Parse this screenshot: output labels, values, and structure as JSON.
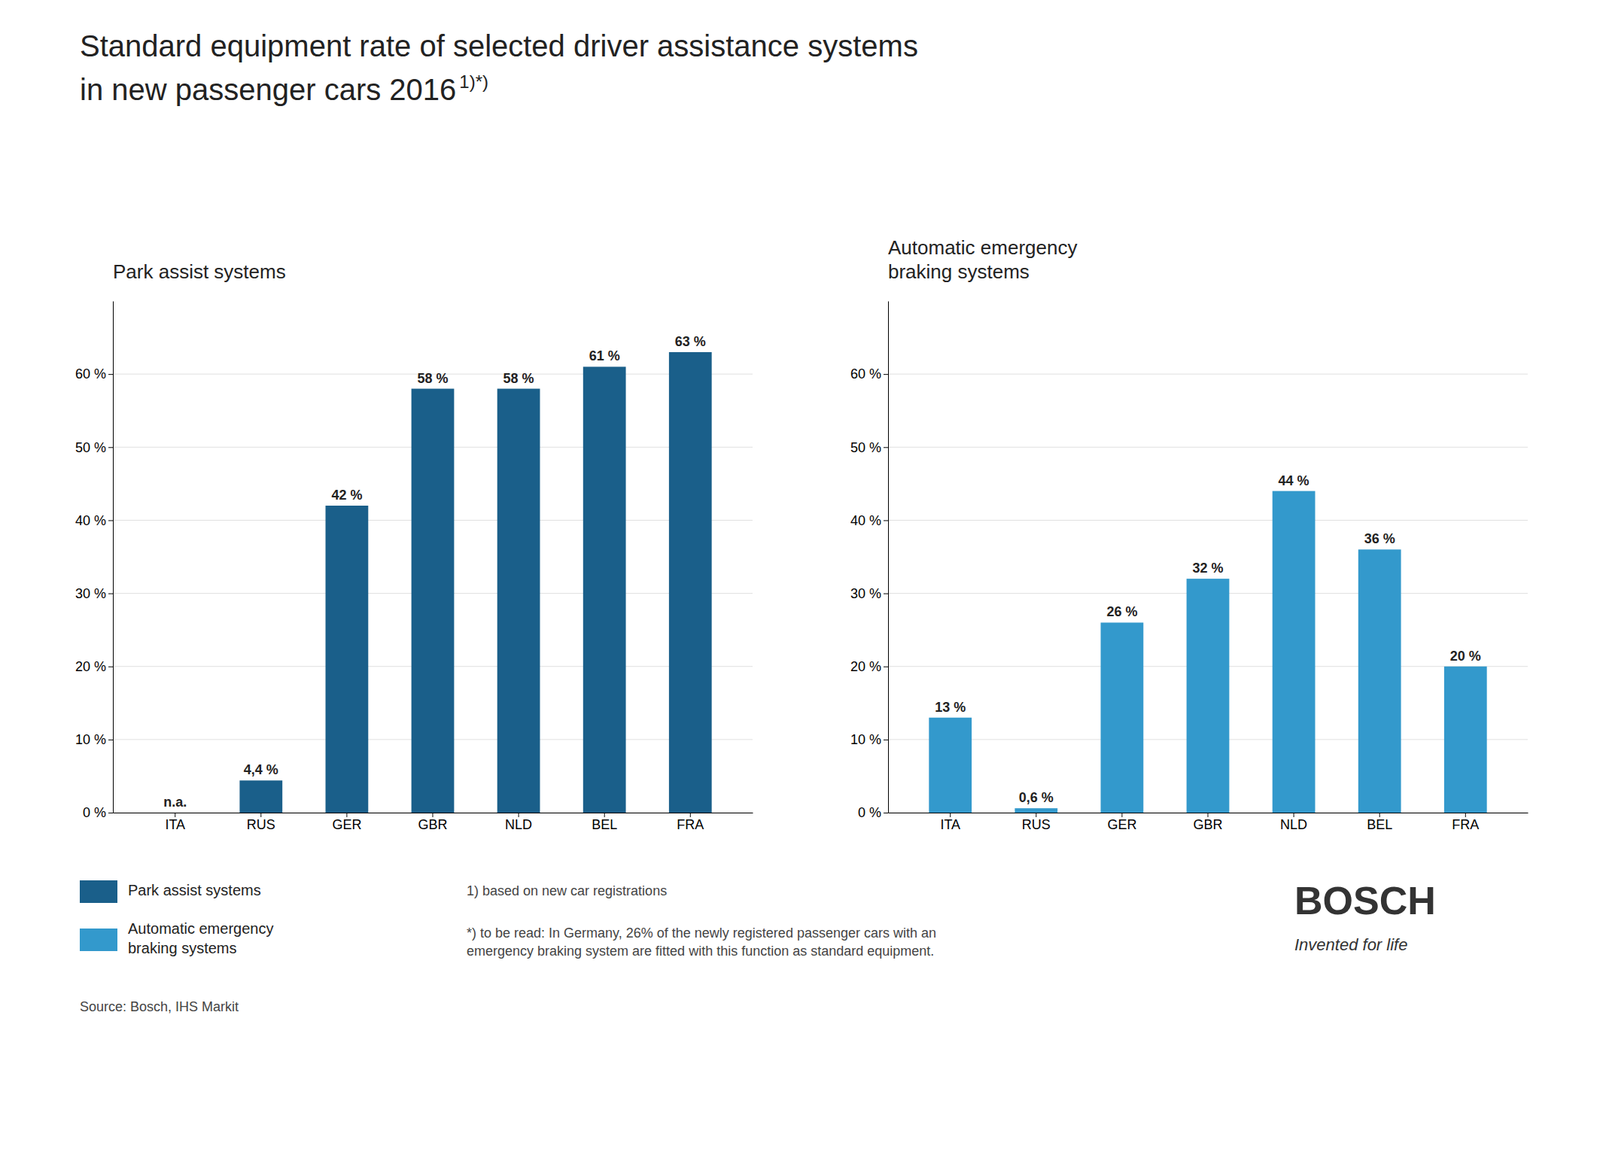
{
  "chart_data": [
    {
      "type": "bar",
      "title": "Park assist systems",
      "categories": [
        "ITA",
        "RUS",
        "GER",
        "GBR",
        "NLD",
        "BEL",
        "FRA"
      ],
      "series": [
        {
          "name": "Park assist systems",
          "color": "#1a5f8a",
          "values": [
            null,
            4.4,
            42,
            58,
            58,
            61,
            63
          ],
          "value_labels": [
            "n.a.",
            "4,4 %",
            "42 %",
            "58 %",
            "58 %",
            "61 %",
            "63 %"
          ]
        }
      ],
      "ylim": [
        0,
        70
      ],
      "yticks": [
        {
          "value": 0,
          "label": "0 %"
        },
        {
          "value": 10,
          "label": "10 %"
        },
        {
          "value": 20,
          "label": "20 %"
        },
        {
          "value": 30,
          "label": "30 %"
        },
        {
          "value": 40,
          "label": "40 %"
        },
        {
          "value": 50,
          "label": "50 %"
        },
        {
          "value": 60,
          "label": "60 %"
        }
      ],
      "grid": true,
      "data_labels": true
    },
    {
      "type": "bar",
      "title": "Automatic emergency\nbraking systems",
      "categories": [
        "ITA",
        "RUS",
        "GER",
        "GBR",
        "NLD",
        "BEL",
        "FRA"
      ],
      "series": [
        {
          "name": "Automatic emergency\nbraking systems",
          "color": "#3399cc",
          "values": [
            13,
            0.6,
            26,
            32,
            44,
            36,
            20
          ],
          "value_labels": [
            "13 %",
            "0,6 %",
            "26 %",
            "32 %",
            "44 %",
            "36 %",
            "20 %"
          ]
        }
      ],
      "ylim": [
        0,
        70
      ],
      "yticks": [
        {
          "value": 0,
          "label": "0 %"
        },
        {
          "value": 10,
          "label": "10 %"
        },
        {
          "value": 20,
          "label": "20 %"
        },
        {
          "value": 30,
          "label": "30 %"
        },
        {
          "value": 40,
          "label": "40 %"
        },
        {
          "value": 50,
          "label": "50 %"
        },
        {
          "value": 60,
          "label": "60 %"
        }
      ],
      "grid": true,
      "data_labels": true
    }
  ],
  "title": [
    "Standard equipment rate of selected driver assistance systems",
    "in new passenger cars 2016"
  ],
  "title_note": "1)*)",
  "legend": "bottom",
  "source": "Source: Bosch, IHS Markit",
  "footnotes": [
    "1) based on new car registrations",
    "*) to be read: In Germany, 26% of the newly registered passenger cars with an\nemergency braking system are fitted with this function as standard equipment."
  ],
  "annotations": [
    "BOSCH",
    "Invented for life"
  ]
}
